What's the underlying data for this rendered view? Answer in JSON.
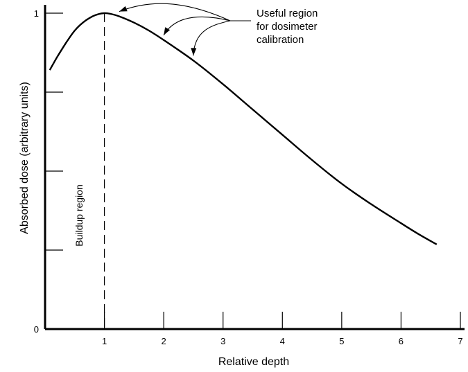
{
  "chart_data": {
    "type": "line",
    "title": "",
    "xlabel": "Relative depth",
    "ylabel": "Absorbed dose (arbitrary units)",
    "xlim": [
      0,
      7
    ],
    "ylim": [
      0,
      1
    ],
    "x_ticks": [
      {
        "value": 1,
        "label": "1"
      },
      {
        "value": 2,
        "label": "2"
      },
      {
        "value": 3,
        "label": "3"
      },
      {
        "value": 4,
        "label": "4"
      },
      {
        "value": 5,
        "label": "5"
      },
      {
        "value": 6,
        "label": "6"
      },
      {
        "value": 7,
        "label": "7"
      }
    ],
    "y_ticks": [
      {
        "value": 0,
        "label": "0"
      },
      {
        "value": 0.25,
        "label": ""
      },
      {
        "value": 0.5,
        "label": ""
      },
      {
        "value": 0.75,
        "label": ""
      },
      {
        "value": 1,
        "label": "1"
      }
    ],
    "grid": false,
    "series": [
      {
        "x": [
          0.08,
          0.2,
          0.35,
          0.5,
          0.65,
          0.8,
          0.9,
          1.0,
          1.1,
          1.25,
          1.5,
          1.75,
          2.0,
          2.5,
          3.0,
          3.5,
          4.0,
          4.5,
          5.0,
          5.5,
          6.0,
          6.3,
          6.6
        ],
        "y": [
          0.82,
          0.86,
          0.905,
          0.945,
          0.972,
          0.99,
          0.997,
          1.0,
          0.998,
          0.99,
          0.97,
          0.945,
          0.915,
          0.85,
          0.775,
          0.695,
          0.615,
          0.535,
          0.46,
          0.395,
          0.335,
          0.3,
          0.268
        ]
      }
    ],
    "reference_lines": [
      {
        "orientation": "vertical",
        "x": 1,
        "style": "dashed"
      }
    ],
    "annotations": [
      {
        "text_lines": [
          "Useful region",
          "for dosimeter",
          "calibration"
        ],
        "arrow_targets_x": [
          1.25,
          2.0,
          2.5
        ]
      },
      {
        "text": "Buildup region"
      }
    ]
  }
}
